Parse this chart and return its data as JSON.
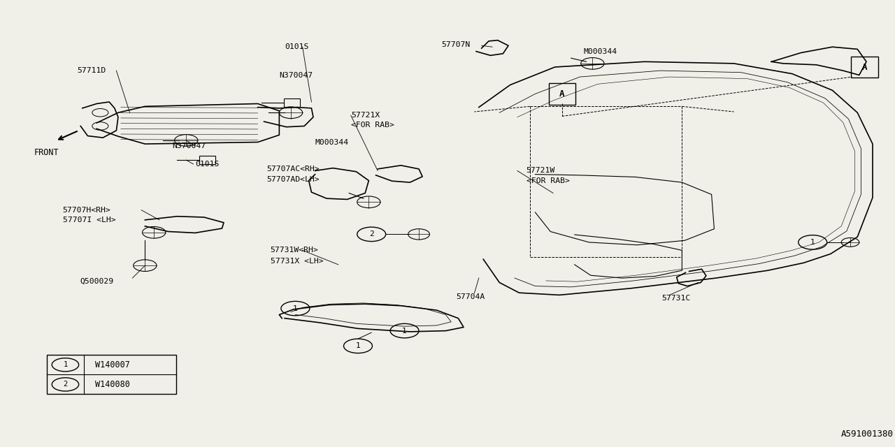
{
  "bg_color": "#f0f0e8",
  "line_color": "#000000",
  "diagram_id": "A591001380",
  "font_family": "monospace",
  "legend_items": [
    {
      "symbol": "1",
      "code": "W140007"
    },
    {
      "symbol": "2",
      "code": "W140080"
    }
  ]
}
